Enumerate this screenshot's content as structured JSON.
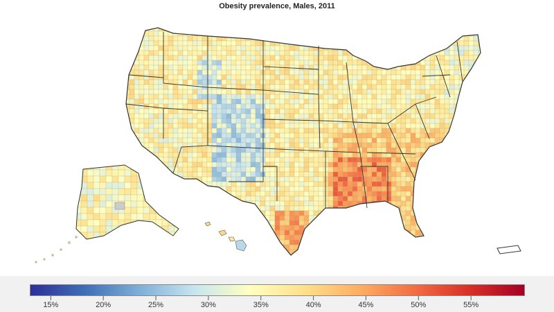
{
  "title": "Obesity prevalence, Males, 2011",
  "map": {
    "region": "United States counties",
    "measure": "obesity prevalence",
    "sex": "Males",
    "year": 2011,
    "insets": [
      "Alaska",
      "Hawaii",
      "Puerto Rico"
    ]
  },
  "legend": {
    "min": 13,
    "max": 60,
    "tick_labels": [
      "15%",
      "20%",
      "25%",
      "30%",
      "35%",
      "40%",
      "45%",
      "50%",
      "55%"
    ],
    "tick_values": [
      15,
      20,
      25,
      30,
      35,
      40,
      45,
      50,
      55
    ],
    "gradient_colors": [
      "#2d2f96",
      "#3f6fb6",
      "#7fb0d8",
      "#c8e6f0",
      "#ffffbf",
      "#fee08b",
      "#fdae61",
      "#f46d43",
      "#d73027",
      "#a50026"
    ]
  },
  "colors": {
    "low": "#4575b4",
    "mid": "#ffffbf",
    "high": "#d73027",
    "missing": "#cccccc",
    "legend_background": "#f1f1f1"
  }
}
